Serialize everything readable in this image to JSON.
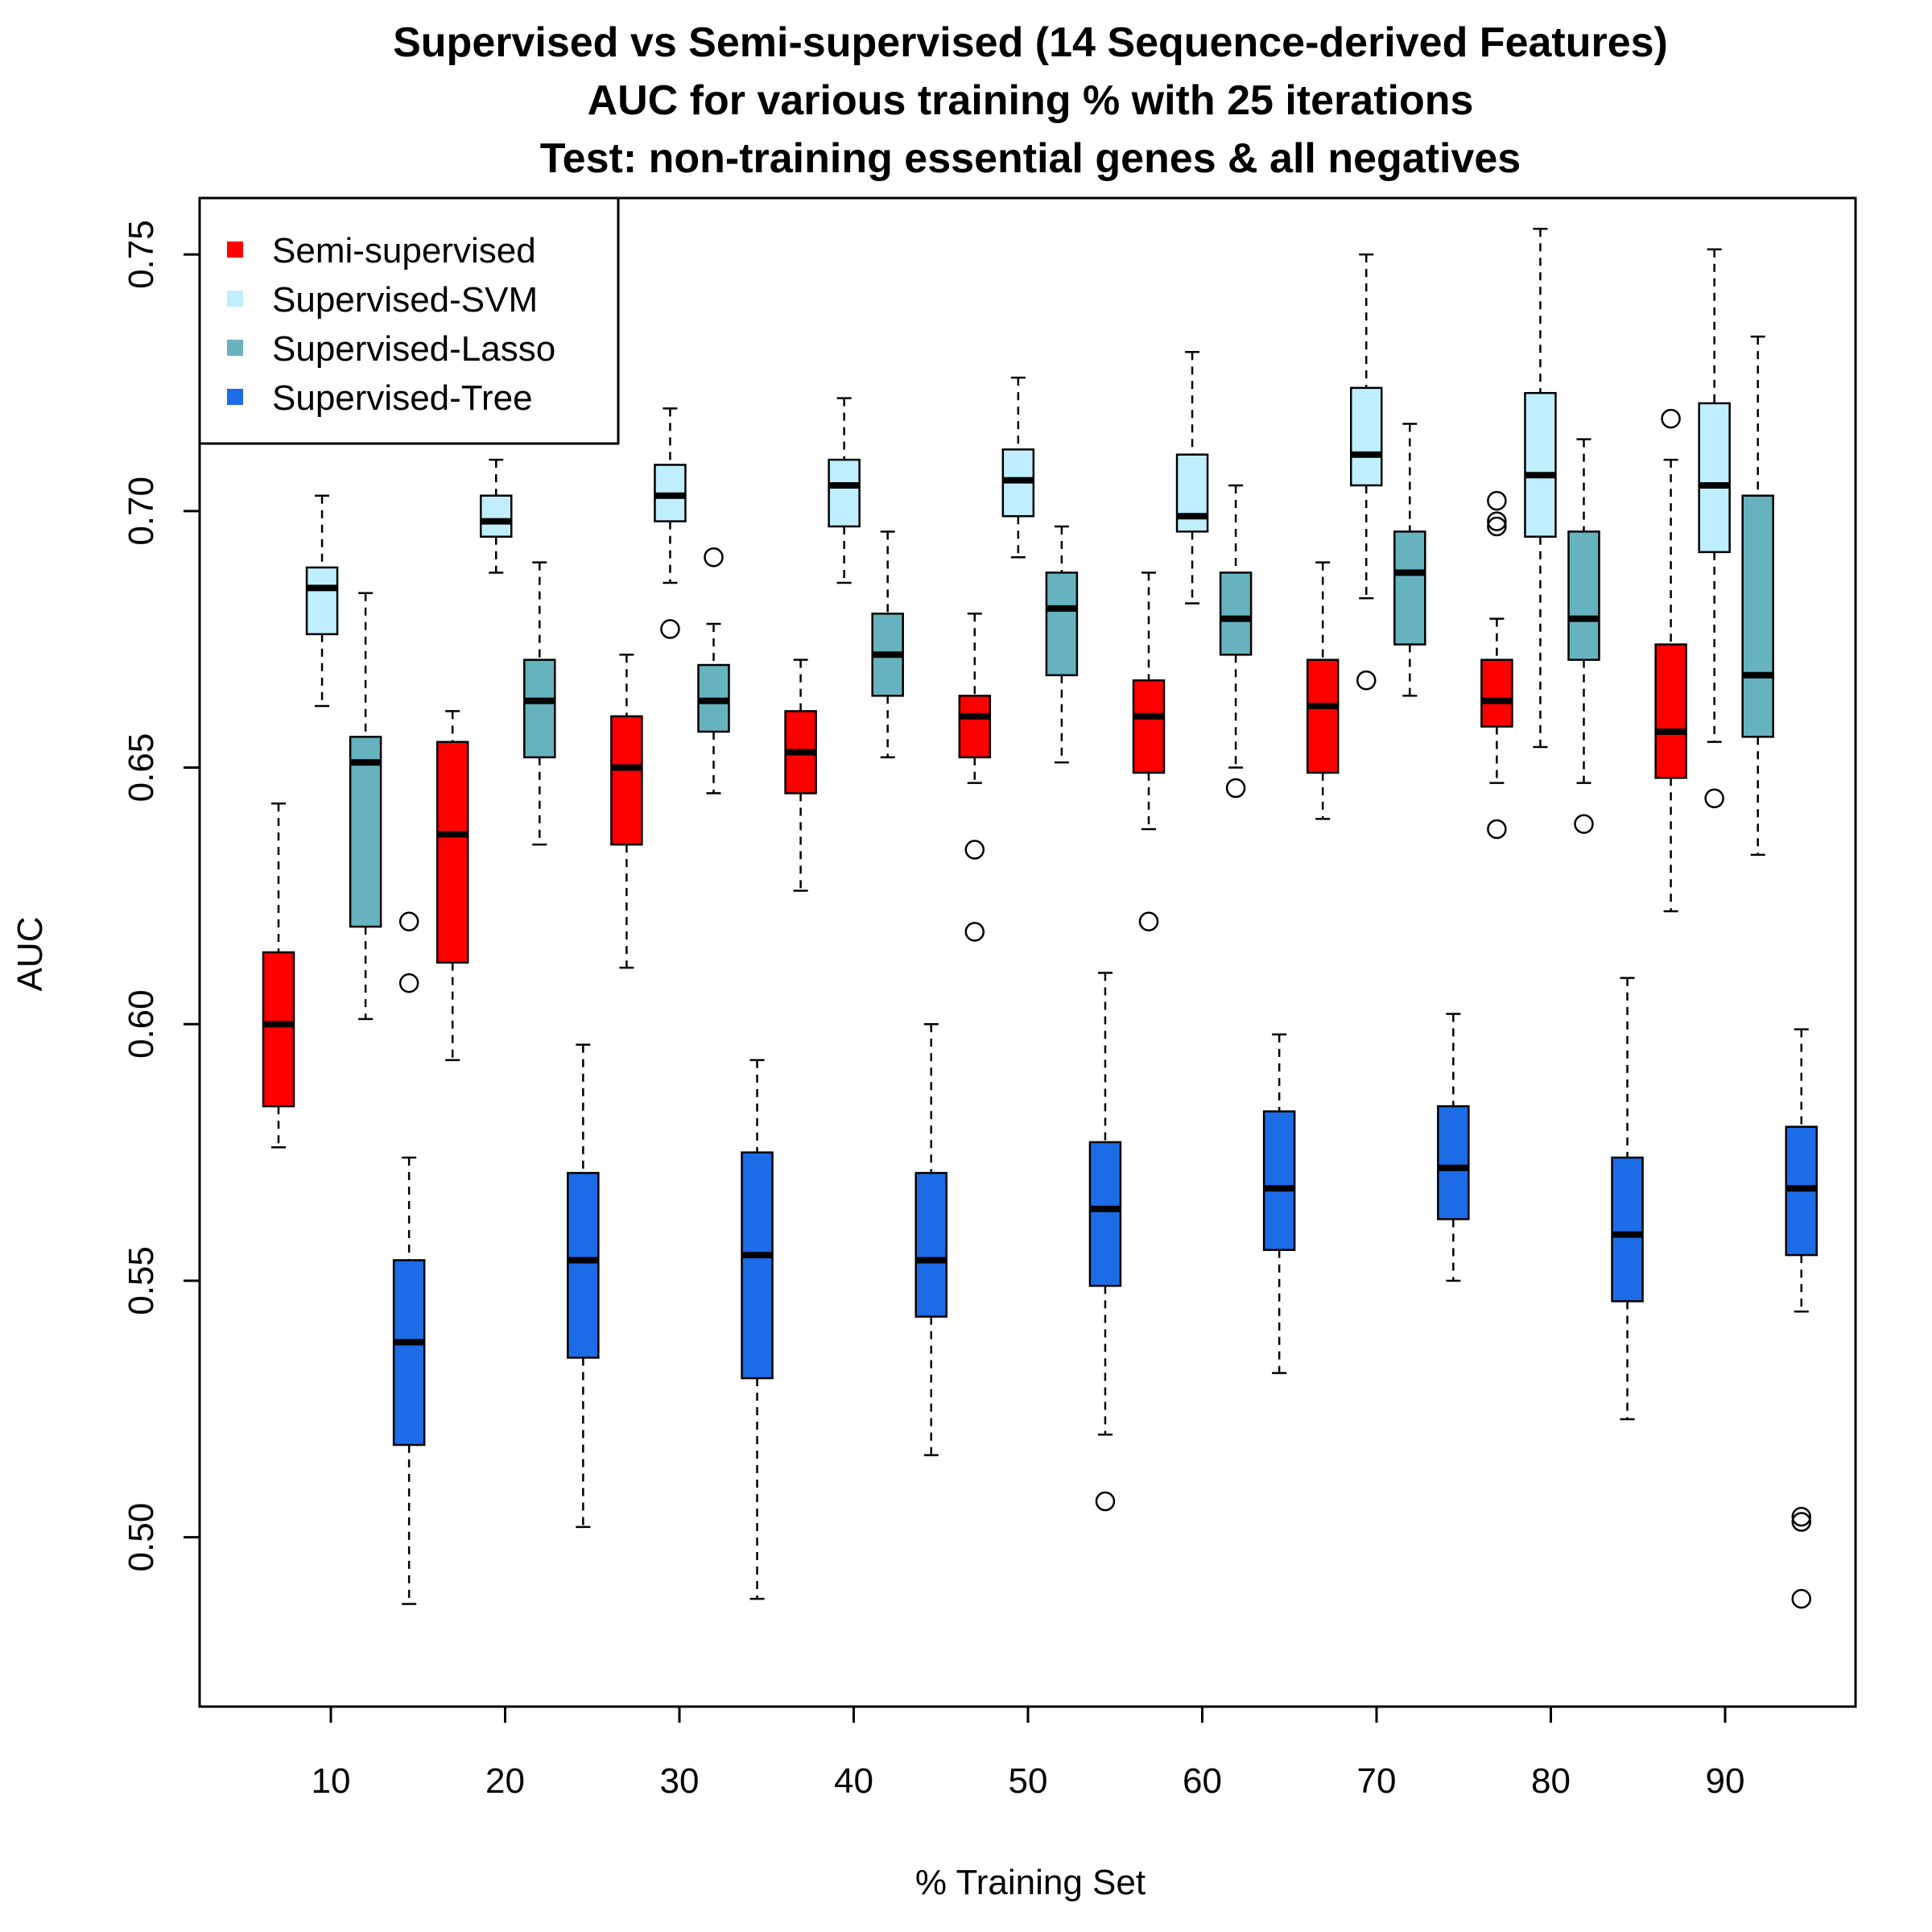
{
  "chart_data": {
    "type": "boxplot",
    "title": [
      "Supervised vs Semi-supervised (14 Sequence-derived Features)",
      "AUC for various training % with 25 iterations",
      "Test: non-training essential genes & all negatives"
    ],
    "xlabel": "% Training Set",
    "ylabel": "AUC",
    "categories": [
      "10",
      "20",
      "30",
      "40",
      "50",
      "60",
      "70",
      "80",
      "90"
    ],
    "yticks": [
      "0.50",
      "0.55",
      "0.60",
      "0.65",
      "0.70",
      "0.75"
    ],
    "ylim": [
      0.467,
      0.761
    ],
    "legend_position": "top-left",
    "series": [
      {
        "name": "Semi-supervised",
        "color": "#ff0000",
        "boxes": [
          {
            "min": 0.576,
            "q1": 0.584,
            "median": 0.6,
            "q3": 0.614,
            "max": 0.643,
            "outliers": []
          },
          {
            "min": 0.593,
            "q1": 0.612,
            "median": 0.637,
            "q3": 0.655,
            "max": 0.661,
            "outliers": []
          },
          {
            "min": 0.611,
            "q1": 0.635,
            "median": 0.65,
            "q3": 0.66,
            "max": 0.672,
            "outliers": []
          },
          {
            "min": 0.626,
            "q1": 0.645,
            "median": 0.653,
            "q3": 0.661,
            "max": 0.671,
            "outliers": []
          },
          {
            "min": 0.647,
            "q1": 0.652,
            "median": 0.66,
            "q3": 0.664,
            "max": 0.68,
            "outliers": [
              0.634,
              0.618
            ]
          },
          {
            "min": 0.638,
            "q1": 0.649,
            "median": 0.66,
            "q3": 0.667,
            "max": 0.688,
            "outliers": [
              0.62
            ]
          },
          {
            "min": 0.64,
            "q1": 0.649,
            "median": 0.662,
            "q3": 0.671,
            "max": 0.69,
            "outliers": []
          },
          {
            "min": 0.647,
            "q1": 0.658,
            "median": 0.663,
            "q3": 0.671,
            "max": 0.679,
            "outliers": [
              0.702,
              0.698,
              0.697,
              0.638
            ]
          },
          {
            "min": 0.622,
            "q1": 0.648,
            "median": 0.657,
            "q3": 0.674,
            "max": 0.71,
            "outliers": [
              0.718
            ]
          }
        ]
      },
      {
        "name": "Supervised-SVM",
        "color": "#bfefff",
        "boxes": [
          {
            "min": 0.662,
            "q1": 0.676,
            "median": 0.685,
            "q3": 0.689,
            "max": 0.703,
            "outliers": []
          },
          {
            "min": 0.688,
            "q1": 0.695,
            "median": 0.698,
            "q3": 0.703,
            "max": 0.71,
            "outliers": []
          },
          {
            "min": 0.686,
            "q1": 0.698,
            "median": 0.703,
            "q3": 0.709,
            "max": 0.72,
            "outliers": [
              0.677
            ]
          },
          {
            "min": 0.686,
            "q1": 0.697,
            "median": 0.705,
            "q3": 0.71,
            "max": 0.722,
            "outliers": []
          },
          {
            "min": 0.691,
            "q1": 0.699,
            "median": 0.706,
            "q3": 0.712,
            "max": 0.726,
            "outliers": []
          },
          {
            "min": 0.682,
            "q1": 0.696,
            "median": 0.699,
            "q3": 0.711,
            "max": 0.731,
            "outliers": []
          },
          {
            "min": 0.683,
            "q1": 0.705,
            "median": 0.711,
            "q3": 0.724,
            "max": 0.75,
            "outliers": [
              0.667
            ]
          },
          {
            "min": 0.654,
            "q1": 0.695,
            "median": 0.707,
            "q3": 0.723,
            "max": 0.755,
            "outliers": []
          },
          {
            "min": 0.655,
            "q1": 0.692,
            "median": 0.705,
            "q3": 0.721,
            "max": 0.751,
            "outliers": [
              0.644
            ]
          }
        ]
      },
      {
        "name": "Supervised-Lasso",
        "color": "#66b2bf",
        "boxes": [
          {
            "min": 0.601,
            "q1": 0.619,
            "median": 0.651,
            "q3": 0.656,
            "max": 0.684,
            "outliers": []
          },
          {
            "min": 0.635,
            "q1": 0.652,
            "median": 0.663,
            "q3": 0.671,
            "max": 0.69,
            "outliers": []
          },
          {
            "min": 0.645,
            "q1": 0.657,
            "median": 0.663,
            "q3": 0.67,
            "max": 0.678,
            "outliers": [
              0.691
            ]
          },
          {
            "min": 0.652,
            "q1": 0.664,
            "median": 0.672,
            "q3": 0.68,
            "max": 0.696,
            "outliers": []
          },
          {
            "min": 0.651,
            "q1": 0.668,
            "median": 0.681,
            "q3": 0.688,
            "max": 0.697,
            "outliers": []
          },
          {
            "min": 0.65,
            "q1": 0.672,
            "median": 0.679,
            "q3": 0.688,
            "max": 0.705,
            "outliers": [
              0.646
            ]
          },
          {
            "min": 0.664,
            "q1": 0.674,
            "median": 0.688,
            "q3": 0.696,
            "max": 0.717,
            "outliers": []
          },
          {
            "min": 0.647,
            "q1": 0.671,
            "median": 0.679,
            "q3": 0.696,
            "max": 0.714,
            "outliers": [
              0.639
            ]
          },
          {
            "min": 0.633,
            "q1": 0.656,
            "median": 0.668,
            "q3": 0.703,
            "max": 0.734,
            "outliers": []
          }
        ]
      },
      {
        "name": "Supervised-Tree",
        "color": "#1c6ce8",
        "boxes": [
          {
            "min": 0.487,
            "q1": 0.518,
            "median": 0.538,
            "q3": 0.554,
            "max": 0.574,
            "outliers": [
              0.62,
              0.608
            ]
          },
          {
            "min": 0.502,
            "q1": 0.535,
            "median": 0.554,
            "q3": 0.571,
            "max": 0.596,
            "outliers": []
          },
          {
            "min": 0.488,
            "q1": 0.531,
            "median": 0.555,
            "q3": 0.575,
            "max": 0.593,
            "outliers": []
          },
          {
            "min": 0.516,
            "q1": 0.543,
            "median": 0.554,
            "q3": 0.571,
            "max": 0.6,
            "outliers": []
          },
          {
            "min": 0.52,
            "q1": 0.549,
            "median": 0.564,
            "q3": 0.577,
            "max": 0.61,
            "outliers": [
              0.507
            ]
          },
          {
            "min": 0.532,
            "q1": 0.556,
            "median": 0.568,
            "q3": 0.583,
            "max": 0.598,
            "outliers": []
          },
          {
            "min": 0.55,
            "q1": 0.562,
            "median": 0.572,
            "q3": 0.584,
            "max": 0.602,
            "outliers": []
          },
          {
            "min": 0.523,
            "q1": 0.546,
            "median": 0.559,
            "q3": 0.574,
            "max": 0.609,
            "outliers": []
          },
          {
            "min": 0.544,
            "q1": 0.555,
            "median": 0.568,
            "q3": 0.58,
            "max": 0.599,
            "outliers": [
              0.504,
              0.503,
              0.488
            ]
          }
        ]
      }
    ]
  }
}
